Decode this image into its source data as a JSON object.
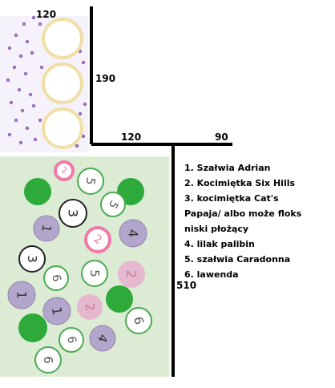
{
  "dimensions": {
    "top_width": "120",
    "side_height": "190",
    "bottom_left": "120",
    "bottom_right": "90",
    "bed_height": "510"
  },
  "legend": [
    "1. Szałwia Adrian",
    "2. Kocimiętka Six Hills",
    "3. kocimiętka Cat's",
    "Papaja/ albo może floks",
    "niski płożący",
    "4. lilak palibin",
    "5. szałwia Caradonna",
    "6. lawenda"
  ],
  "plants": [
    {
      "label": "2",
      "kind": "pink-ring"
    },
    {
      "label": "5",
      "kind": "white-green"
    },
    {
      "label": "",
      "kind": "green"
    },
    {
      "label": "",
      "kind": "green"
    },
    {
      "label": "5",
      "kind": "white-green"
    },
    {
      "label": "3",
      "kind": "white-black"
    },
    {
      "label": "1",
      "kind": "purple"
    },
    {
      "label": "2",
      "kind": "pink-ring"
    },
    {
      "label": "4",
      "kind": "purple"
    },
    {
      "label": "3",
      "kind": "white-black"
    },
    {
      "label": "6",
      "kind": "white-green"
    },
    {
      "label": "5",
      "kind": "white-green"
    },
    {
      "label": "2",
      "kind": "pink"
    },
    {
      "label": "1",
      "kind": "purple"
    },
    {
      "label": "",
      "kind": "green"
    },
    {
      "label": "1",
      "kind": "purple"
    },
    {
      "label": "2",
      "kind": "pink"
    },
    {
      "label": "6",
      "kind": "white-green"
    },
    {
      "label": "",
      "kind": "green"
    },
    {
      "label": "6",
      "kind": "white-green"
    },
    {
      "label": "4",
      "kind": "purple"
    },
    {
      "label": "6",
      "kind": "white-green"
    }
  ],
  "colors": {
    "bed": "#dcecd4",
    "green": "#2eaa3a",
    "purple": "#b3a6cc",
    "pink": "#e6b8cf",
    "pink_ring": "#ef7aa8",
    "white_green_stroke": "#4caa55",
    "ring": "#f0dfa6",
    "wall": "#000000",
    "flower_purple": "#7a3fa8"
  }
}
